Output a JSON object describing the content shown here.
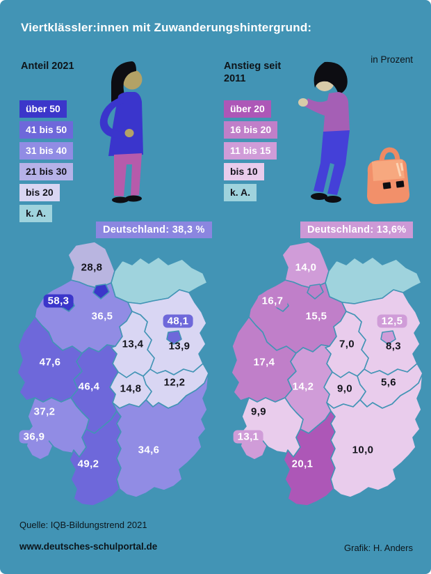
{
  "title": "Viertklässler:innen mit Zuwanderungshintergrund:",
  "unit_note": "in Prozent",
  "background_color": "#4294b5",
  "footer": {
    "source": "Quelle: IQB-Bildungstrend 2021",
    "website": "www.deutsches-schulportal.de",
    "credit": "Grafik: H. Anders"
  },
  "chart_data": [
    {
      "type": "choropleth",
      "title": "Anteil 2021",
      "unit": "Prozent",
      "germany": {
        "label": "Deutschland: 38,3 %",
        "value": 38.3,
        "badge_color": "#8b86e0"
      },
      "legend": [
        {
          "label": "über 50",
          "color": "#3b36ca",
          "text": "#ffffff"
        },
        {
          "label": "41 bis 50",
          "color": "#6e68da",
          "text": "#ffffff"
        },
        {
          "label": "31 bis 40",
          "color": "#918ce4",
          "text": "#ffffff"
        },
        {
          "label": "21 bis 30",
          "color": "#b6b2e8",
          "text": "#14141c"
        },
        {
          "label": "bis 20",
          "color": "#d9d6f3",
          "text": "#14141c"
        },
        {
          "label": "k. A.",
          "color": "#9fd3dd",
          "text": "#14141c"
        }
      ],
      "states": [
        {
          "id": "SH",
          "name": "Schleswig-Holstein",
          "label": "28,8",
          "value": 28.8,
          "color": "#b9b5e0",
          "text": "#14141c",
          "badge": false
        },
        {
          "id": "MV",
          "name": "Mecklenburg-Vorpommern",
          "label": "",
          "value": null,
          "color": "#9fd3dd",
          "text": "#14141c",
          "badge": false
        },
        {
          "id": "NI",
          "name": "Niedersachsen",
          "label": "36,5",
          "value": 36.5,
          "color": "#918ce4",
          "text": "#ffffff",
          "badge": false
        },
        {
          "id": "BB",
          "name": "Brandenburg",
          "label": "13,9",
          "value": 13.9,
          "color": "#d9d6f3",
          "text": "#14141c",
          "badge": false
        },
        {
          "id": "ST",
          "name": "Sachsen-Anhalt",
          "label": "13,4",
          "value": 13.4,
          "color": "#d9d6f3",
          "text": "#14141c",
          "badge": false
        },
        {
          "id": "SN",
          "name": "Sachsen",
          "label": "12,2",
          "value": 12.2,
          "color": "#d9d6f3",
          "text": "#14141c",
          "badge": false
        },
        {
          "id": "TH",
          "name": "Thüringen",
          "label": "14,8",
          "value": 14.8,
          "color": "#d9d6f3",
          "text": "#14141c",
          "badge": false
        },
        {
          "id": "NW",
          "name": "Nordrhein-Westfalen",
          "label": "47,6",
          "value": 47.6,
          "color": "#6e68da",
          "text": "#ffffff",
          "badge": false
        },
        {
          "id": "HE",
          "name": "Hessen",
          "label": "46,4",
          "value": 46.4,
          "color": "#6e68da",
          "text": "#ffffff",
          "badge": false
        },
        {
          "id": "RP",
          "name": "Rheinland-Pfalz",
          "label": "37,2",
          "value": 37.2,
          "color": "#918ce4",
          "text": "#ffffff",
          "badge": false
        },
        {
          "id": "SL",
          "name": "Saarland",
          "label": "36,9",
          "value": 36.9,
          "color": "#918ce4",
          "text": "#ffffff",
          "badge": true
        },
        {
          "id": "BW",
          "name": "Baden-Württemberg",
          "label": "49,2",
          "value": 49.2,
          "color": "#6e68da",
          "text": "#ffffff",
          "badge": false
        },
        {
          "id": "BY",
          "name": "Bayern",
          "label": "34,6",
          "value": 34.6,
          "color": "#918ce4",
          "text": "#ffffff",
          "badge": false
        },
        {
          "id": "HH",
          "name": "Hamburg",
          "label": "",
          "value": null,
          "color": "#3b36ca",
          "text": "#ffffff",
          "badge": false
        },
        {
          "id": "HB",
          "name": "Bremen",
          "label": "58,3",
          "value": 58.3,
          "color": "#3b36ca",
          "text": "#ffffff",
          "badge": true
        },
        {
          "id": "BE",
          "name": "Berlin",
          "label": "48,1",
          "value": 48.1,
          "color": "#6e68da",
          "text": "#ffffff",
          "badge": true
        }
      ]
    },
    {
      "type": "choropleth",
      "title": "Anstieg seit 2011",
      "unit": "Prozent",
      "germany": {
        "label": "Deutschland: 13,6%",
        "value": 13.6,
        "badge_color": "#cd99d6"
      },
      "legend": [
        {
          "label": "über 20",
          "color": "#ad57b7",
          "text": "#ffffff"
        },
        {
          "label": "16 bis 20",
          "color": "#c07fc9",
          "text": "#ffffff"
        },
        {
          "label": "11 bis 15",
          "color": "#d09cd8",
          "text": "#ffffff"
        },
        {
          "label": "bis 10",
          "color": "#e9ccec",
          "text": "#14141c"
        },
        {
          "label": "k. A.",
          "color": "#9fd3dd",
          "text": "#14141c"
        }
      ],
      "states": [
        {
          "id": "SH",
          "name": "Schleswig-Holstein",
          "label": "14,0",
          "value": 14.0,
          "color": "#d09cd8",
          "text": "#ffffff",
          "badge": false
        },
        {
          "id": "MV",
          "name": "Mecklenburg-Vorpommern",
          "label": "",
          "value": null,
          "color": "#9fd3dd",
          "text": "#14141c",
          "badge": false
        },
        {
          "id": "NI",
          "name": "Niedersachsen",
          "label": "15,5",
          "value": 15.5,
          "color": "#c07fc9",
          "text": "#ffffff",
          "badge": false
        },
        {
          "id": "BB",
          "name": "Brandenburg",
          "label": "8,3",
          "value": 8.3,
          "color": "#e9ccec",
          "text": "#14141c",
          "badge": false
        },
        {
          "id": "ST",
          "name": "Sachsen-Anhalt",
          "label": "7,0",
          "value": 7.0,
          "color": "#e9ccec",
          "text": "#14141c",
          "badge": false
        },
        {
          "id": "SN",
          "name": "Sachsen",
          "label": "5,6",
          "value": 5.6,
          "color": "#e9ccec",
          "text": "#14141c",
          "badge": false
        },
        {
          "id": "TH",
          "name": "Thüringen",
          "label": "9,0",
          "value": 9.0,
          "color": "#e9ccec",
          "text": "#14141c",
          "badge": false
        },
        {
          "id": "NW",
          "name": "Nordrhein-Westfalen",
          "label": "17,4",
          "value": 17.4,
          "color": "#c07fc9",
          "text": "#ffffff",
          "badge": false
        },
        {
          "id": "HE",
          "name": "Hessen",
          "label": "14,2",
          "value": 14.2,
          "color": "#d09cd8",
          "text": "#ffffff",
          "badge": false
        },
        {
          "id": "RP",
          "name": "Rheinland-Pfalz",
          "label": "9,9",
          "value": 9.9,
          "color": "#e9ccec",
          "text": "#14141c",
          "badge": false
        },
        {
          "id": "SL",
          "name": "Saarland",
          "label": "13,1",
          "value": 13.1,
          "color": "#d09cd8",
          "text": "#ffffff",
          "badge": true
        },
        {
          "id": "BW",
          "name": "Baden-Württemberg",
          "label": "20,1",
          "value": 20.1,
          "color": "#ad57b7",
          "text": "#ffffff",
          "badge": false
        },
        {
          "id": "BY",
          "name": "Bayern",
          "label": "10,0",
          "value": 10.0,
          "color": "#e9ccec",
          "text": "#14141c",
          "badge": false
        },
        {
          "id": "HH",
          "name": "Hamburg",
          "label": "",
          "value": null,
          "color": "#c07fc9",
          "text": "#ffffff",
          "badge": false
        },
        {
          "id": "HB",
          "name": "Bremen",
          "label": "16,7",
          "value": 16.7,
          "color": "#c07fc9",
          "text": "#ffffff",
          "badge": true
        },
        {
          "id": "BE",
          "name": "Berlin",
          "label": "12,5",
          "value": 12.5,
          "color": "#d09cd8",
          "text": "#ffffff",
          "badge": true
        }
      ]
    }
  ]
}
